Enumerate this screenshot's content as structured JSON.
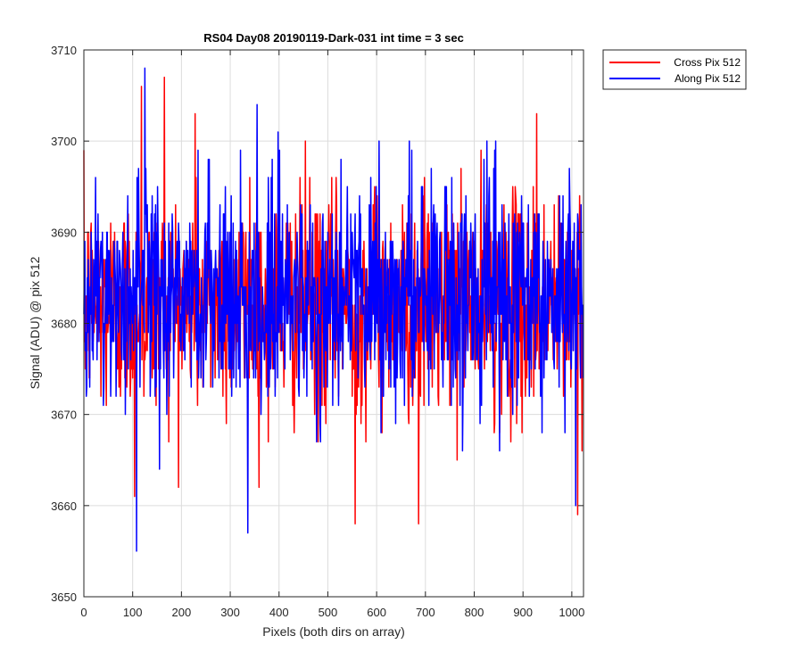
{
  "chart_data": {
    "type": "line",
    "title": "RS04 Day08 20190119-Dark-031 int time = 3 sec",
    "xlabel": "Pixels (both dirs on array)",
    "ylabel": "Signal (ADU) @ pix 512",
    "xlim": [
      0,
      1024
    ],
    "ylim": [
      3650,
      3710
    ],
    "xticks": [
      0,
      100,
      200,
      300,
      400,
      500,
      600,
      700,
      800,
      900,
      1000
    ],
    "yticks": [
      3650,
      3660,
      3670,
      3680,
      3690,
      3700,
      3710
    ],
    "grid": true,
    "legend_position": "outside-top-right",
    "series": [
      {
        "name": "Cross Pix 512",
        "color": "#ff0000",
        "mean": 3682,
        "spread": 6,
        "samples": 1024,
        "highlights": [
          [
            104,
            3661
          ],
          [
            118,
            3706
          ],
          [
            165,
            3707
          ],
          [
            228,
            3703
          ],
          [
            340,
            3696
          ],
          [
            454,
            3700
          ],
          [
            556,
            3658
          ],
          [
            686,
            3658
          ],
          [
            928,
            3703
          ],
          [
            1012,
            3659
          ]
        ]
      },
      {
        "name": "Along Pix 512",
        "color": "#0000ff",
        "mean": 3683,
        "spread": 6,
        "samples": 1024,
        "highlights": [
          [
            108,
            3655
          ],
          [
            125,
            3708
          ],
          [
            336,
            3657
          ],
          [
            355,
            3704
          ],
          [
            398,
            3701
          ],
          [
            672,
            3699
          ],
          [
            820,
            3698
          ],
          [
            1008,
            3660
          ]
        ]
      }
    ]
  }
}
